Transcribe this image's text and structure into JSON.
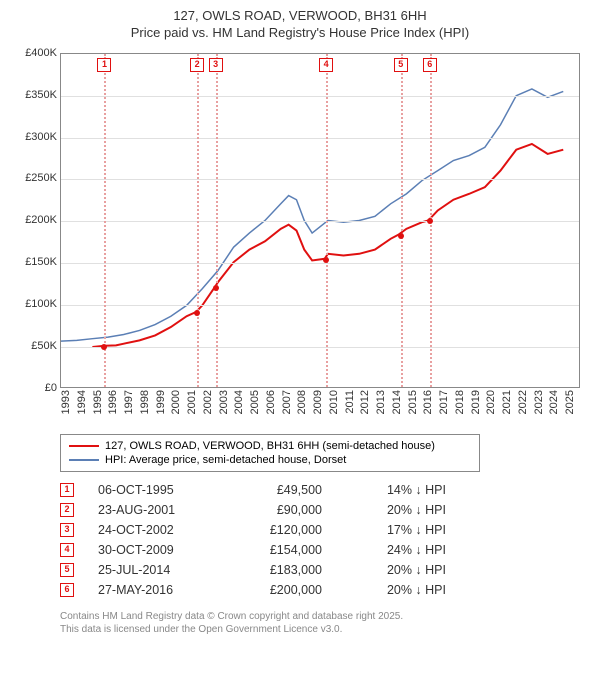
{
  "title_line1": "127, OWLS ROAD, VERWOOD, BH31 6HH",
  "title_line2": "Price paid vs. HM Land Registry's House Price Index (HPI)",
  "chart": {
    "type": "line",
    "background_color": "#ffffff",
    "grid_color": "#e0e0e0",
    "border_color": "#888888",
    "x_years": [
      1993,
      1994,
      1995,
      1996,
      1997,
      1998,
      1999,
      2000,
      2001,
      2002,
      2003,
      2004,
      2005,
      2006,
      2007,
      2008,
      2009,
      2010,
      2011,
      2012,
      2013,
      2014,
      2015,
      2016,
      2017,
      2018,
      2019,
      2020,
      2021,
      2022,
      2023,
      2024,
      2025
    ],
    "xlim": [
      1993,
      2026
    ],
    "ylim": [
      0,
      400000
    ],
    "ytick_step": 50000,
    "ytick_labels": [
      "£0",
      "£50K",
      "£100K",
      "£150K",
      "£200K",
      "£250K",
      "£300K",
      "£350K",
      "£400K"
    ],
    "series": [
      {
        "name": "127, OWLS ROAD, VERWOOD, BH31 6HH (semi-detached house)",
        "color": "#e01010",
        "width": 2,
        "data": [
          [
            1995,
            48000
          ],
          [
            1995.8,
            49500
          ],
          [
            1996.5,
            50000
          ],
          [
            1997,
            52000
          ],
          [
            1998,
            56000
          ],
          [
            1999,
            62000
          ],
          [
            2000,
            72000
          ],
          [
            2001,
            85000
          ],
          [
            2001.6,
            90000
          ],
          [
            2002,
            98000
          ],
          [
            2002.8,
            120000
          ],
          [
            2003,
            126000
          ],
          [
            2004,
            150000
          ],
          [
            2005,
            165000
          ],
          [
            2006,
            175000
          ],
          [
            2007,
            190000
          ],
          [
            2007.5,
            195000
          ],
          [
            2008,
            188000
          ],
          [
            2008.5,
            165000
          ],
          [
            2009,
            152000
          ],
          [
            2009.8,
            154000
          ],
          [
            2010,
            160000
          ],
          [
            2011,
            158000
          ],
          [
            2012,
            160000
          ],
          [
            2013,
            165000
          ],
          [
            2014,
            178000
          ],
          [
            2014.5,
            183000
          ],
          [
            2015,
            190000
          ],
          [
            2016,
            198000
          ],
          [
            2016.4,
            200000
          ],
          [
            2017,
            212000
          ],
          [
            2018,
            225000
          ],
          [
            2019,
            232000
          ],
          [
            2020,
            240000
          ],
          [
            2021,
            260000
          ],
          [
            2022,
            285000
          ],
          [
            2023,
            292000
          ],
          [
            2024,
            280000
          ],
          [
            2025,
            285000
          ]
        ]
      },
      {
        "name": "HPI: Average price, semi-detached house, Dorset",
        "color": "#5b7fb5",
        "width": 1.5,
        "data": [
          [
            1993,
            55000
          ],
          [
            1994,
            56000
          ],
          [
            1995,
            58000
          ],
          [
            1996,
            60000
          ],
          [
            1997,
            63000
          ],
          [
            1998,
            68000
          ],
          [
            1999,
            75000
          ],
          [
            2000,
            85000
          ],
          [
            2001,
            98000
          ],
          [
            2002,
            118000
          ],
          [
            2003,
            140000
          ],
          [
            2004,
            168000
          ],
          [
            2005,
            185000
          ],
          [
            2006,
            200000
          ],
          [
            2007,
            220000
          ],
          [
            2007.5,
            230000
          ],
          [
            2008,
            225000
          ],
          [
            2008.5,
            200000
          ],
          [
            2009,
            185000
          ],
          [
            2010,
            200000
          ],
          [
            2011,
            198000
          ],
          [
            2012,
            200000
          ],
          [
            2013,
            205000
          ],
          [
            2014,
            220000
          ],
          [
            2015,
            232000
          ],
          [
            2016,
            248000
          ],
          [
            2017,
            260000
          ],
          [
            2018,
            272000
          ],
          [
            2019,
            278000
          ],
          [
            2020,
            288000
          ],
          [
            2021,
            315000
          ],
          [
            2022,
            350000
          ],
          [
            2023,
            358000
          ],
          [
            2024,
            348000
          ],
          [
            2025,
            355000
          ]
        ]
      }
    ],
    "transactions_markers": [
      {
        "n": "1",
        "year": 1995.76,
        "price": 49500,
        "marker_color": "#e01010"
      },
      {
        "n": "2",
        "year": 2001.64,
        "price": 90000,
        "marker_color": "#e01010"
      },
      {
        "n": "3",
        "year": 2002.81,
        "price": 120000,
        "marker_color": "#e01010"
      },
      {
        "n": "4",
        "year": 2009.83,
        "price": 154000,
        "marker_color": "#e01010"
      },
      {
        "n": "5",
        "year": 2014.56,
        "price": 183000,
        "marker_color": "#e01010"
      },
      {
        "n": "6",
        "year": 2016.4,
        "price": 200000,
        "marker_color": "#e01010"
      }
    ],
    "vline_color": "#e8a0a0",
    "label_fontsize": 11
  },
  "legend": {
    "items": [
      {
        "color": "#e01010",
        "label": "127, OWLS ROAD, VERWOOD, BH31 6HH (semi-detached house)"
      },
      {
        "color": "#5b7fb5",
        "label": "HPI: Average price, semi-detached house, Dorset"
      }
    ]
  },
  "transactions": [
    {
      "n": "1",
      "date": "06-OCT-1995",
      "price": "£49,500",
      "delta": "14% ↓ HPI"
    },
    {
      "n": "2",
      "date": "23-AUG-2001",
      "price": "£90,000",
      "delta": "20% ↓ HPI"
    },
    {
      "n": "3",
      "date": "24-OCT-2002",
      "price": "£120,000",
      "delta": "17% ↓ HPI"
    },
    {
      "n": "4",
      "date": "30-OCT-2009",
      "price": "£154,000",
      "delta": "24% ↓ HPI"
    },
    {
      "n": "5",
      "date": "25-JUL-2014",
      "price": "£183,000",
      "delta": "20% ↓ HPI"
    },
    {
      "n": "6",
      "date": "27-MAY-2016",
      "price": "£200,000",
      "delta": "20% ↓ HPI"
    }
  ],
  "footer_line1": "Contains HM Land Registry data © Crown copyright and database right 2025.",
  "footer_line2": "This data is licensed under the Open Government Licence v3.0."
}
